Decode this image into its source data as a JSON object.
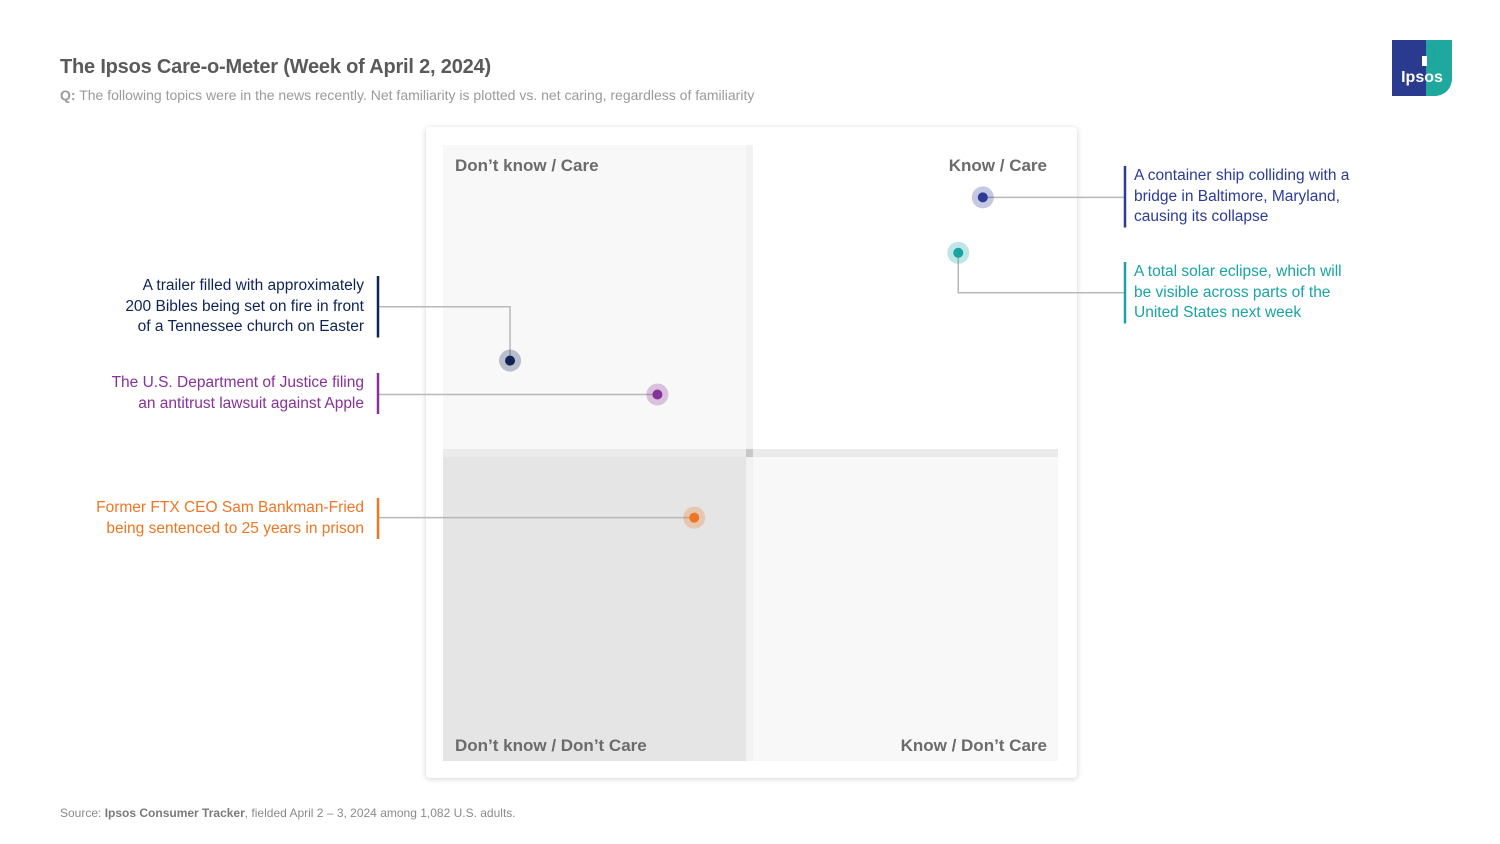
{
  "header": {
    "title": "The Ipsos Care-o-Meter (Week of April 2, 2024)",
    "subtitle_prefix": "Q:",
    "subtitle": "The following topics were in the news recently. Net familiarity is plotted vs. net caring, regardless of familiarity"
  },
  "logo": {
    "text": "Ipsos",
    "colors": [
      "#2a3a8f",
      "#1fa99e"
    ]
  },
  "footer": {
    "source_prefix": "Source: ",
    "source_bold": "Ipsos Consumer Tracker",
    "source_rest": ", fielded April 2 – 3, 2024 among 1,082 U.S. adults."
  },
  "quadrants": {
    "top_left": "Don’t know / Care",
    "top_right": "Know / Care",
    "bottom_left": "Don’t know / Don’t Care",
    "bottom_right": "Know / Don’t Care"
  },
  "chart_data": {
    "type": "scatter",
    "title": "The Ipsos Care-o-Meter (Week of April 2, 2024)",
    "xlabel": "",
    "ylabel": "",
    "xlim": [
      -1,
      1
    ],
    "ylim": [
      -1,
      1
    ],
    "grid": false,
    "points": [
      {
        "label": "A container ship colliding with a bridge in Baltimore, Maryland, causing its collapse",
        "x": 0.76,
        "y": 0.83,
        "color": "#2b3b96",
        "side": "right"
      },
      {
        "label": "A total solar eclipse, which will be visible across parts of the United States next week",
        "x": 0.68,
        "y": 0.65,
        "color": "#1aa3a3",
        "side": "right"
      },
      {
        "label": "A trailer filled with approximately 200 Bibles being set on fire in front of a Tennessee church on Easter",
        "x": -0.78,
        "y": 0.3,
        "color": "#0e2456",
        "side": "left"
      },
      {
        "label": "The U.S. Department of Justice filing an antitrust lawsuit against Apple",
        "x": -0.3,
        "y": 0.19,
        "color": "#87319a",
        "side": "left"
      },
      {
        "label": "Former FTX CEO Sam Bankman-Fried being sentenced to 25 years in prison",
        "x": -0.18,
        "y": -0.21,
        "color": "#ee7623",
        "side": "left"
      }
    ]
  }
}
